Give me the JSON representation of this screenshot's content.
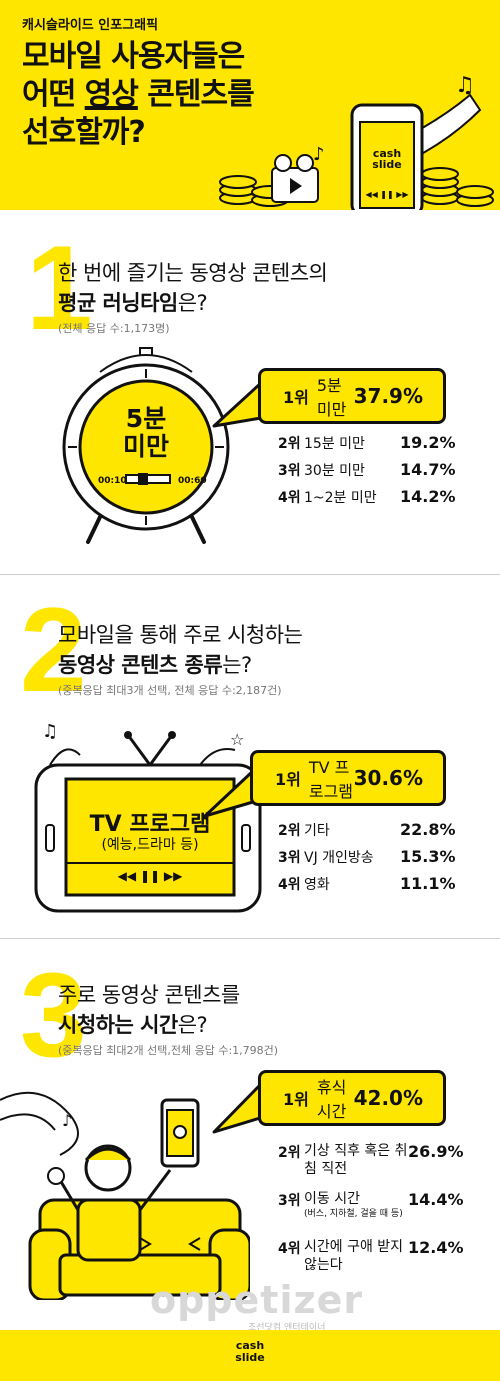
{
  "header": {
    "brand": "캐시슬라이드 인포그래픽",
    "title_line1": "모바일 사용자들은",
    "title_line2a": "어떤 ",
    "title_line2b": "영상",
    "title_line2c": " 콘텐츠를",
    "title_line3": "선호할까?",
    "phone_logo": "cash\nslide",
    "phone_controls": "◀◀ ❚❚ ▶▶"
  },
  "s1": {
    "num": "1",
    "q1": "한 번에 즐기는 동영상 콘텐츠의",
    "q2a": "평균 러닝타임",
    "q2b": "은?",
    "note": "(전체 응답 수:1,173명)",
    "clock_text1": "5분",
    "clock_text2": "미만",
    "clock_start": "00:10",
    "clock_end": "00:60",
    "top": {
      "rank": "1위",
      "label": "5분 미만",
      "pct": "37.9%"
    },
    "rows": [
      {
        "rank": "2위",
        "label": "15분 미만",
        "pct": "19.2%"
      },
      {
        "rank": "3위",
        "label": "30분 미만",
        "pct": "14.7%"
      },
      {
        "rank": "4위",
        "label": "1~2분 미만",
        "pct": "14.2%"
      }
    ]
  },
  "s2": {
    "num": "2",
    "q1": "모바일을 통해 주로 시청하는",
    "q2a": "동영상 콘텐츠 종류",
    "q2b": "는?",
    "note": "(중복응답 최대3개 선택, 전체 응답 수:2,187건)",
    "tv_title": "TV 프로그램",
    "tv_sub": "(예능,드라마 등)",
    "tv_controls": "◀◀  ❚❚  ▶▶",
    "top": {
      "rank": "1위",
      "label": "TV 프로그램",
      "pct": "30.6%"
    },
    "rows": [
      {
        "rank": "2위",
        "label": "기타",
        "pct": "22.8%"
      },
      {
        "rank": "3위",
        "label": "VJ 개인방송",
        "pct": "15.3%"
      },
      {
        "rank": "4위",
        "label": "영화",
        "pct": "11.1%"
      }
    ]
  },
  "s3": {
    "num": "3",
    "q1": "주로 동영상 콘텐츠를",
    "q2a": "시청하는 시간",
    "q2b": "은?",
    "note": "(중복응답 최대2개 선택,전체 응답 수:1,798건)",
    "top": {
      "rank": "1위",
      "label": "휴식 시간",
      "pct": "42.0%"
    },
    "rows": [
      {
        "rank": "2위",
        "label": "기상 직후 혹은 취침 직전",
        "sub": "",
        "pct": "26.9%"
      },
      {
        "rank": "3위",
        "label": "이동 시간",
        "sub": "(버스, 지하철, 걸을 때 등)",
        "pct": "14.4%"
      },
      {
        "rank": "4위",
        "label": "시간에 구애 받지 않는다",
        "sub": "",
        "pct": "12.4%"
      }
    ]
  },
  "watermark": {
    "logo": "oppetizer",
    "sub": "조선닷컴 엔터테이너"
  },
  "footer": {
    "logo1": "cash",
    "logo2": "slide"
  },
  "colors": {
    "accent": "#ffe600",
    "ink": "#111111"
  }
}
